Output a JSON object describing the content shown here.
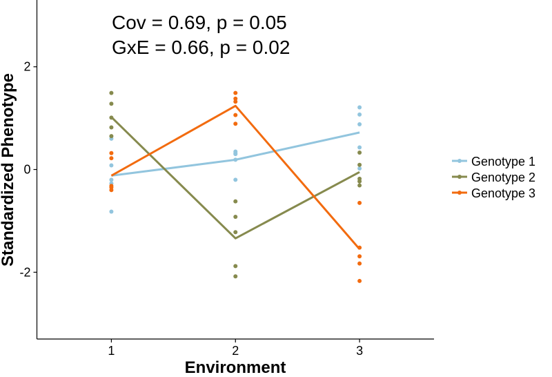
{
  "chart_data": {
    "type": "line",
    "title": "",
    "annotations": [
      "Cov = 0.69, p = 0.05",
      "GxE = 0.66, p = 0.02"
    ],
    "xlabel": "Environment",
    "ylabel": "Standardized Phenotype",
    "x_categories": [
      "1",
      "2",
      "3"
    ],
    "x_ticks": [
      "1",
      "2",
      "3"
    ],
    "y_ticks": [
      -2,
      0,
      2
    ],
    "y_tick_labels": [
      "-2",
      "0",
      "2"
    ],
    "xlim": [
      0.4,
      3.6
    ],
    "ylim": [
      -3.3,
      3.3
    ],
    "grid": false,
    "legend_position": "right",
    "series": [
      {
        "name": "Genotype 1",
        "color": "#92c5de",
        "means": [
          -0.12,
          0.19,
          0.72
        ],
        "points": [
          [
            0.6,
            0.08,
            -0.2,
            -0.27,
            -0.82
          ],
          [
            0.35,
            0.32,
            0.3,
            0.19,
            -0.2
          ],
          [
            1.21,
            1.07,
            0.88,
            0.43,
            0.02
          ]
        ]
      },
      {
        "name": "Genotype 2",
        "color": "#868a4e",
        "means": [
          1.02,
          -1.34,
          -0.05
        ],
        "points": [
          [
            1.49,
            1.28,
            1.01,
            0.82,
            0.65
          ],
          [
            -0.62,
            -0.92,
            -1.22,
            -1.88,
            -2.08
          ],
          [
            0.33,
            0.09,
            -0.18,
            -0.23,
            -0.31
          ]
        ]
      },
      {
        "name": "Genotype 3",
        "color": "#f26b0f",
        "means": [
          -0.12,
          1.24,
          -1.55
        ],
        "points": [
          [
            0.32,
            0.22,
            -0.32,
            -0.35,
            -0.4
          ],
          [
            1.49,
            1.38,
            1.32,
            1.06,
            0.89
          ],
          [
            -0.65,
            -1.52,
            -1.69,
            -1.83,
            -2.17
          ]
        ]
      }
    ]
  }
}
